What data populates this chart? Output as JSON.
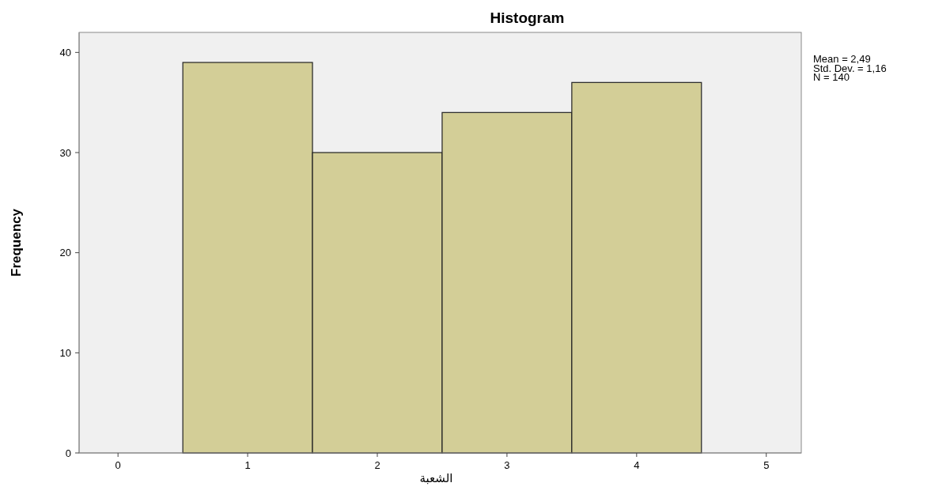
{
  "chart_data": {
    "type": "histogram",
    "title": "Histogram",
    "xlabel": "الشعبة",
    "ylabel": "Frequency",
    "bins": [
      0.5,
      1.5,
      2.5,
      3.5,
      4.5
    ],
    "values": [
      39,
      30,
      34,
      37
    ],
    "color": "#d3ce97",
    "xlim": [
      -0.3,
      5.27
    ],
    "ylim": [
      0,
      42
    ],
    "xticks": [
      0,
      1,
      2,
      3,
      4,
      5
    ],
    "yticks": [
      0,
      10,
      20,
      30,
      40
    ],
    "annotations": [
      "Mean = 2,49",
      "Std. Dev. = 1,16",
      "N = 140"
    ]
  }
}
